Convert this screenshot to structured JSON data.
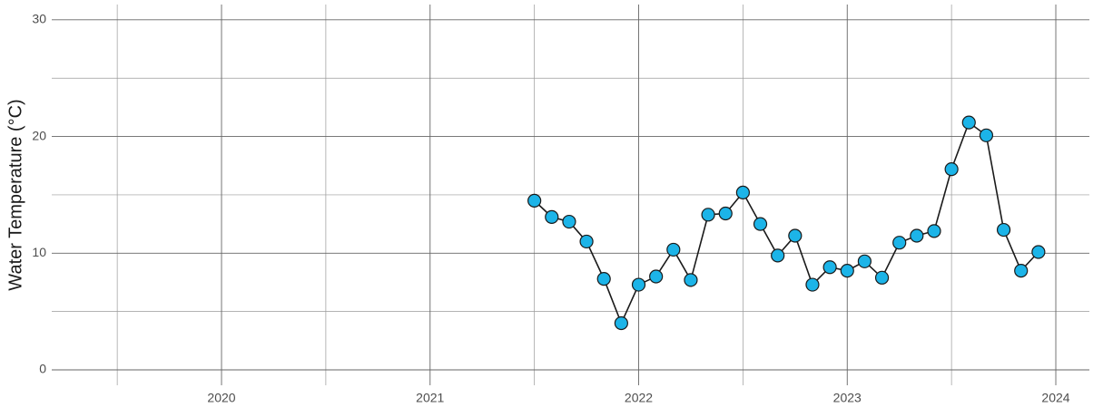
{
  "chart_data": {
    "type": "line",
    "y_label": "Water Temperature (°C)",
    "x": [
      2021.5,
      2021.5833,
      2021.6667,
      2021.75,
      2021.8333,
      2021.9167,
      2022.0,
      2022.0833,
      2022.1667,
      2022.25,
      2022.3333,
      2022.4167,
      2022.5,
      2022.5833,
      2022.6667,
      2022.75,
      2022.8333,
      2022.9167,
      2023.0,
      2023.0833,
      2023.1667,
      2023.25,
      2023.3333,
      2023.4167,
      2023.5,
      2023.5833,
      2023.6667,
      2023.75,
      2023.8333,
      2023.9167
    ],
    "series": [
      {
        "name": "Water Temperature",
        "color": "#1cb4e8",
        "line_color": "#1a1a1a",
        "values": [
          14.5,
          13.1,
          12.7,
          11.0,
          7.8,
          4.0,
          7.3,
          8.0,
          10.3,
          7.7,
          13.3,
          13.4,
          15.2,
          12.5,
          9.8,
          11.5,
          7.3,
          8.8,
          8.5,
          9.3,
          7.9,
          10.9,
          11.5,
          11.9,
          17.2,
          21.2,
          20.1,
          12.0,
          8.5,
          10.1
        ]
      }
    ],
    "xlim": [
      2019.186,
      2024.161
    ],
    "xticks": [
      2020,
      2021,
      2022,
      2023,
      2024
    ],
    "x_minor_ticks": [
      2019.5,
      2020.5,
      2021.5,
      2022.5,
      2023.5
    ],
    "ylim": [
      -1.32,
      31.31
    ],
    "yticks": [
      0,
      10,
      20,
      30
    ],
    "y_minor_ticks": [
      5,
      15,
      25
    ],
    "grid": true
  }
}
